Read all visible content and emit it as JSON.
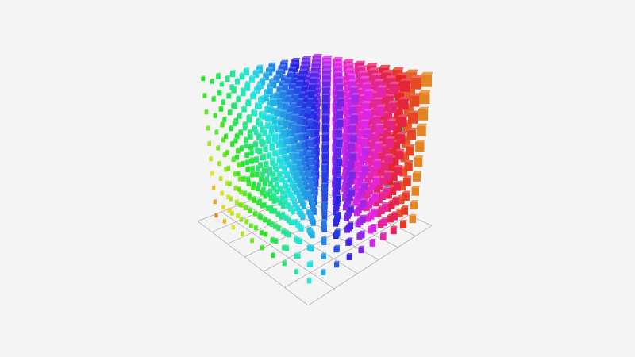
{
  "scene": {
    "type": "scatter3d-cubes",
    "grid_visible": true,
    "background_color": "#f4f4f4",
    "grid_color": "#b0b0b0",
    "color_mapping": "hue-gradient"
  }
}
